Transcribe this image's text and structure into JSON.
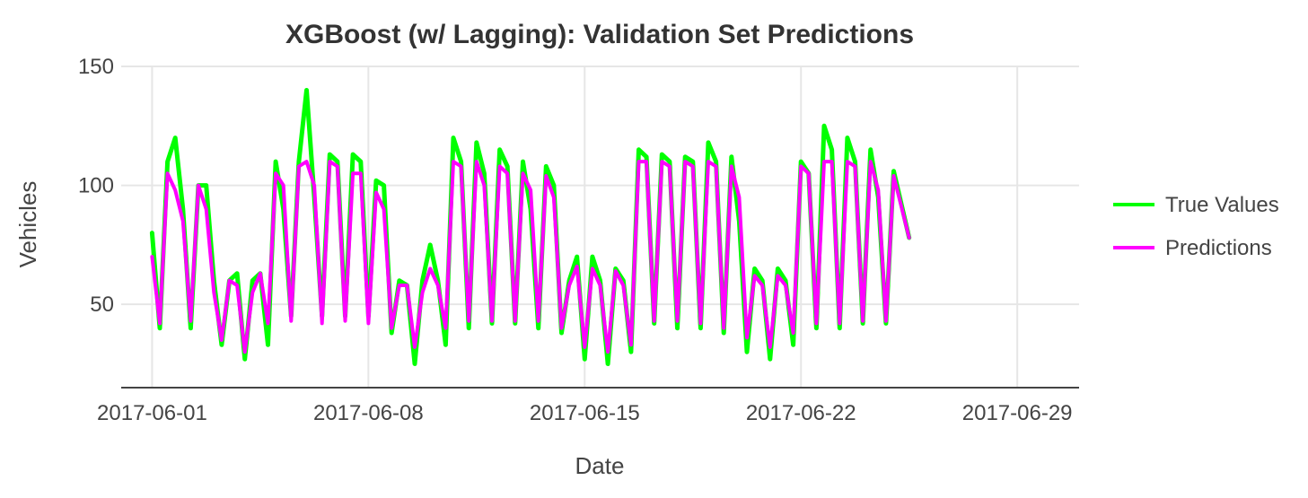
{
  "chart_data": {
    "type": "line",
    "title": "XGBoost (w/ Lagging): Validation Set Predictions",
    "xlabel": "Date",
    "ylabel": "Vehicles",
    "x_axis": {
      "type": "date",
      "range": [
        "2017-05-31",
        "2017-07-01"
      ],
      "ticks": [
        "2017-06-01",
        "2017-06-08",
        "2017-06-15",
        "2017-06-22",
        "2017-06-29"
      ]
    },
    "y_axis": {
      "range": [
        15,
        150
      ],
      "ticks": [
        50,
        100,
        150
      ]
    },
    "grid": true,
    "legend_position": "right",
    "series": [
      {
        "name": "True Values",
        "color": "#00ff00",
        "points": [
          [
            "2017-06-01",
            80
          ],
          [
            "2017-06-01",
            40
          ],
          [
            "2017-06-01",
            110
          ],
          [
            "2017-06-01",
            120
          ],
          [
            "2017-06-02",
            90
          ],
          [
            "2017-06-02",
            40
          ],
          [
            "2017-06-02",
            100
          ],
          [
            "2017-06-02",
            100
          ],
          [
            "2017-06-03",
            60
          ],
          [
            "2017-06-03",
            33
          ],
          [
            "2017-06-03",
            60
          ],
          [
            "2017-06-03",
            63
          ],
          [
            "2017-06-04",
            27
          ],
          [
            "2017-06-04",
            60
          ],
          [
            "2017-06-04",
            63
          ],
          [
            "2017-06-04",
            33
          ],
          [
            "2017-06-05",
            110
          ],
          [
            "2017-06-05",
            90
          ],
          [
            "2017-06-05",
            45
          ],
          [
            "2017-06-05",
            110
          ],
          [
            "2017-06-06",
            140
          ],
          [
            "2017-06-06",
            95
          ],
          [
            "2017-06-06",
            45
          ],
          [
            "2017-06-06",
            113
          ],
          [
            "2017-06-07",
            110
          ],
          [
            "2017-06-07",
            45
          ],
          [
            "2017-06-07",
            113
          ],
          [
            "2017-06-07",
            110
          ],
          [
            "2017-06-08",
            45
          ],
          [
            "2017-06-08",
            102
          ],
          [
            "2017-06-08",
            100
          ],
          [
            "2017-06-08",
            38
          ],
          [
            "2017-06-09",
            60
          ],
          [
            "2017-06-09",
            58
          ],
          [
            "2017-06-09",
            25
          ],
          [
            "2017-06-09",
            60
          ],
          [
            "2017-06-10",
            75
          ],
          [
            "2017-06-10",
            60
          ],
          [
            "2017-06-10",
            33
          ],
          [
            "2017-06-10",
            120
          ],
          [
            "2017-06-11",
            110
          ],
          [
            "2017-06-11",
            40
          ],
          [
            "2017-06-11",
            118
          ],
          [
            "2017-06-11",
            105
          ],
          [
            "2017-06-12",
            42
          ],
          [
            "2017-06-12",
            115
          ],
          [
            "2017-06-12",
            108
          ],
          [
            "2017-06-12",
            42
          ],
          [
            "2017-06-13",
            110
          ],
          [
            "2017-06-13",
            90
          ],
          [
            "2017-06-13",
            40
          ],
          [
            "2017-06-13",
            108
          ],
          [
            "2017-06-14",
            100
          ],
          [
            "2017-06-14",
            38
          ],
          [
            "2017-06-14",
            60
          ],
          [
            "2017-06-14",
            70
          ],
          [
            "2017-06-15",
            27
          ],
          [
            "2017-06-15",
            70
          ],
          [
            "2017-06-15",
            60
          ],
          [
            "2017-06-15",
            25
          ],
          [
            "2017-06-16",
            65
          ],
          [
            "2017-06-16",
            60
          ],
          [
            "2017-06-16",
            30
          ],
          [
            "2017-06-16",
            115
          ],
          [
            "2017-06-17",
            112
          ],
          [
            "2017-06-17",
            42
          ],
          [
            "2017-06-17",
            113
          ],
          [
            "2017-06-17",
            110
          ],
          [
            "2017-06-18",
            40
          ],
          [
            "2017-06-18",
            112
          ],
          [
            "2017-06-18",
            110
          ],
          [
            "2017-06-18",
            40
          ],
          [
            "2017-06-19",
            118
          ],
          [
            "2017-06-19",
            110
          ],
          [
            "2017-06-19",
            38
          ],
          [
            "2017-06-19",
            112
          ],
          [
            "2017-06-20",
            85
          ],
          [
            "2017-06-20",
            30
          ],
          [
            "2017-06-20",
            65
          ],
          [
            "2017-06-20",
            60
          ],
          [
            "2017-06-21",
            27
          ],
          [
            "2017-06-21",
            65
          ],
          [
            "2017-06-21",
            60
          ],
          [
            "2017-06-21",
            33
          ],
          [
            "2017-06-22",
            110
          ],
          [
            "2017-06-22",
            105
          ],
          [
            "2017-06-22",
            40
          ],
          [
            "2017-06-22",
            125
          ],
          [
            "2017-06-23",
            115
          ],
          [
            "2017-06-23",
            40
          ],
          [
            "2017-06-23",
            120
          ],
          [
            "2017-06-23",
            110
          ],
          [
            "2017-06-24",
            42
          ],
          [
            "2017-06-24",
            115
          ],
          [
            "2017-06-24",
            95
          ],
          [
            "2017-06-24",
            42
          ],
          [
            "2017-06-25",
            106
          ],
          [
            "2017-06-25",
            78
          ]
        ]
      },
      {
        "name": "Predictions",
        "color": "#ff00ff",
        "points": [
          [
            "2017-06-01",
            70
          ],
          [
            "2017-06-01",
            42
          ],
          [
            "2017-06-01",
            105
          ],
          [
            "2017-06-01",
            98
          ],
          [
            "2017-06-02",
            85
          ],
          [
            "2017-06-02",
            43
          ],
          [
            "2017-06-02",
            100
          ],
          [
            "2017-06-02",
            90
          ],
          [
            "2017-06-03",
            55
          ],
          [
            "2017-06-03",
            35
          ],
          [
            "2017-06-03",
            60
          ],
          [
            "2017-06-03",
            58
          ],
          [
            "2017-06-04",
            30
          ],
          [
            "2017-06-04",
            55
          ],
          [
            "2017-06-04",
            63
          ],
          [
            "2017-06-04",
            42
          ],
          [
            "2017-06-05",
            105
          ],
          [
            "2017-06-05",
            100
          ],
          [
            "2017-06-05",
            43
          ],
          [
            "2017-06-05",
            108
          ],
          [
            "2017-06-06",
            110
          ],
          [
            "2017-06-06",
            100
          ],
          [
            "2017-06-06",
            42
          ],
          [
            "2017-06-06",
            110
          ],
          [
            "2017-06-07",
            108
          ],
          [
            "2017-06-07",
            43
          ],
          [
            "2017-06-07",
            105
          ],
          [
            "2017-06-07",
            105
          ],
          [
            "2017-06-08",
            42
          ],
          [
            "2017-06-08",
            97
          ],
          [
            "2017-06-08",
            90
          ],
          [
            "2017-06-08",
            40
          ],
          [
            "2017-06-09",
            58
          ],
          [
            "2017-06-09",
            58
          ],
          [
            "2017-06-09",
            32
          ],
          [
            "2017-06-09",
            55
          ],
          [
            "2017-06-10",
            65
          ],
          [
            "2017-06-10",
            58
          ],
          [
            "2017-06-10",
            40
          ],
          [
            "2017-06-10",
            110
          ],
          [
            "2017-06-11",
            108
          ],
          [
            "2017-06-11",
            43
          ],
          [
            "2017-06-11",
            110
          ],
          [
            "2017-06-11",
            100
          ],
          [
            "2017-06-12",
            43
          ],
          [
            "2017-06-12",
            108
          ],
          [
            "2017-06-12",
            105
          ],
          [
            "2017-06-12",
            43
          ],
          [
            "2017-06-13",
            105
          ],
          [
            "2017-06-13",
            98
          ],
          [
            "2017-06-13",
            43
          ],
          [
            "2017-06-13",
            104
          ],
          [
            "2017-06-14",
            95
          ],
          [
            "2017-06-14",
            40
          ],
          [
            "2017-06-14",
            58
          ],
          [
            "2017-06-14",
            66
          ],
          [
            "2017-06-15",
            32
          ],
          [
            "2017-06-15",
            65
          ],
          [
            "2017-06-15",
            58
          ],
          [
            "2017-06-15",
            30
          ],
          [
            "2017-06-16",
            64
          ],
          [
            "2017-06-16",
            58
          ],
          [
            "2017-06-16",
            33
          ],
          [
            "2017-06-16",
            110
          ],
          [
            "2017-06-17",
            110
          ],
          [
            "2017-06-17",
            43
          ],
          [
            "2017-06-17",
            110
          ],
          [
            "2017-06-17",
            108
          ],
          [
            "2017-06-18",
            43
          ],
          [
            "2017-06-18",
            110
          ],
          [
            "2017-06-18",
            108
          ],
          [
            "2017-06-18",
            42
          ],
          [
            "2017-06-19",
            110
          ],
          [
            "2017-06-19",
            108
          ],
          [
            "2017-06-19",
            40
          ],
          [
            "2017-06-19",
            108
          ],
          [
            "2017-06-20",
            95
          ],
          [
            "2017-06-20",
            36
          ],
          [
            "2017-06-20",
            62
          ],
          [
            "2017-06-20",
            58
          ],
          [
            "2017-06-21",
            32
          ],
          [
            "2017-06-21",
            62
          ],
          [
            "2017-06-21",
            58
          ],
          [
            "2017-06-21",
            38
          ],
          [
            "2017-06-22",
            108
          ],
          [
            "2017-06-22",
            105
          ],
          [
            "2017-06-22",
            42
          ],
          [
            "2017-06-22",
            110
          ],
          [
            "2017-06-23",
            110
          ],
          [
            "2017-06-23",
            42
          ],
          [
            "2017-06-23",
            110
          ],
          [
            "2017-06-23",
            108
          ],
          [
            "2017-06-24",
            43
          ],
          [
            "2017-06-24",
            110
          ],
          [
            "2017-06-24",
            98
          ],
          [
            "2017-06-24",
            43
          ],
          [
            "2017-06-25",
            104
          ],
          [
            "2017-06-25",
            78
          ]
        ]
      }
    ]
  }
}
